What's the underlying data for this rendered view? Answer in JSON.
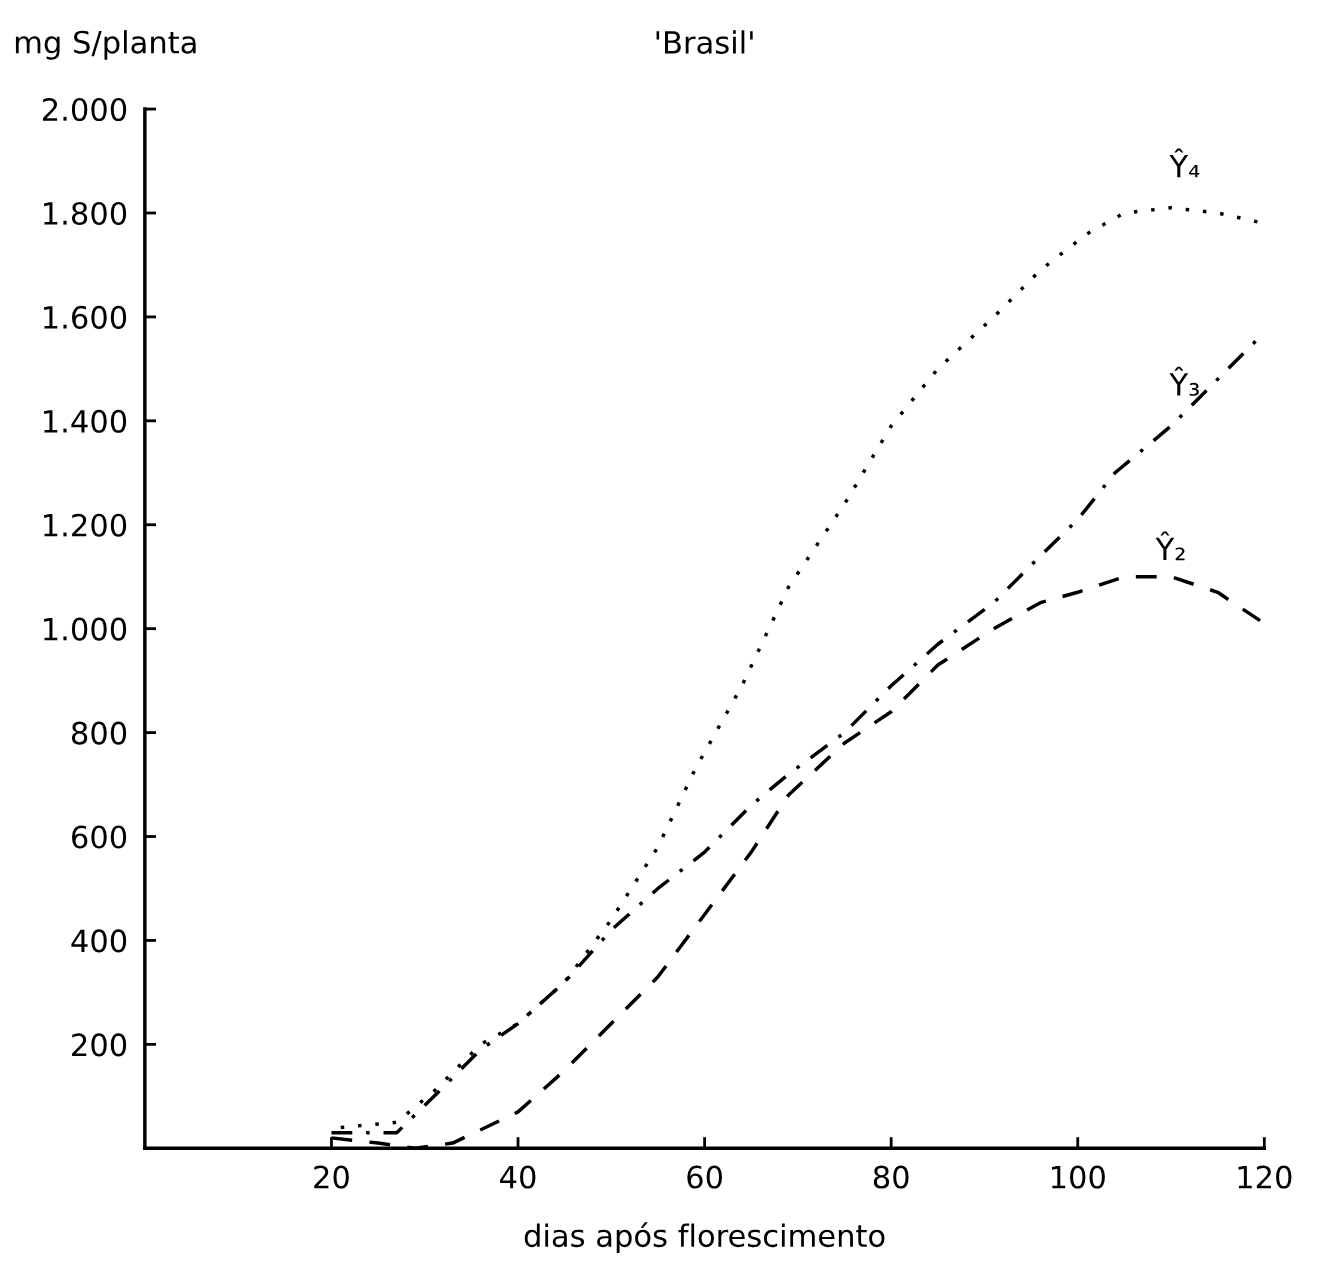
{
  "chart_data": {
    "type": "line",
    "title": "'Brasil'",
    "ylabel": "mg S/planta",
    "xlabel": "dias após florescimento",
    "xlim": [
      0,
      120
    ],
    "xticks": [
      20,
      40,
      60,
      80,
      100,
      120
    ],
    "ylim": [
      0,
      2000
    ],
    "yticks": [
      {
        "value": 0,
        "label": null
      },
      200,
      400,
      600,
      800,
      {
        "value": 1000,
        "label": "1.000"
      },
      {
        "value": 1200,
        "label": "1.200"
      },
      {
        "value": 1400,
        "label": "1.400"
      },
      {
        "value": 1600,
        "label": "1.600"
      },
      {
        "value": 1800,
        "label": "1.800"
      },
      {
        "value": 2000,
        "label": "2.000"
      }
    ],
    "grid": false,
    "legend": false,
    "marker": "none",
    "series": [
      {
        "name": "Ŷ₄",
        "color": "#000000",
        "line_style": "dotted",
        "x": [
          21,
          27,
          31,
          36,
          40,
          45,
          50,
          55,
          59,
          64,
          69,
          75,
          80,
          85,
          91,
          96,
          101,
          105,
          110,
          115,
          120
        ],
        "values": [
          40,
          50,
          110,
          200,
          240,
          320,
          440,
          580,
          730,
          890,
          1080,
          1240,
          1390,
          1500,
          1600,
          1690,
          1760,
          1800,
          1810,
          1800,
          1780
        ]
      },
      {
        "name": "Ŷ₃",
        "color": "#000000",
        "line_style": "dashdot",
        "x": [
          20,
          27,
          31,
          36,
          40,
          45,
          50,
          55,
          60,
          65,
          69,
          75,
          80,
          85,
          91,
          96,
          100,
          104,
          110,
          115,
          120
        ],
        "values": [
          30,
          30,
          100,
          190,
          240,
          320,
          420,
          500,
          570,
          660,
          720,
          800,
          890,
          970,
          1050,
          1140,
          1210,
          1300,
          1390,
          1480,
          1570
        ]
      },
      {
        "name": "Ŷ₂",
        "color": "#000000",
        "line_style": "dashed",
        "x": [
          20,
          25,
          29,
          33,
          40,
          45,
          50,
          55,
          60,
          65,
          69,
          75,
          80,
          85,
          91,
          96,
          100,
          105,
          110,
          115,
          120
        ],
        "values": [
          20,
          10,
          0,
          10,
          70,
          150,
          240,
          330,
          450,
          570,
          680,
          780,
          840,
          930,
          1000,
          1050,
          1070,
          1100,
          1100,
          1070,
          1010
        ]
      }
    ]
  }
}
